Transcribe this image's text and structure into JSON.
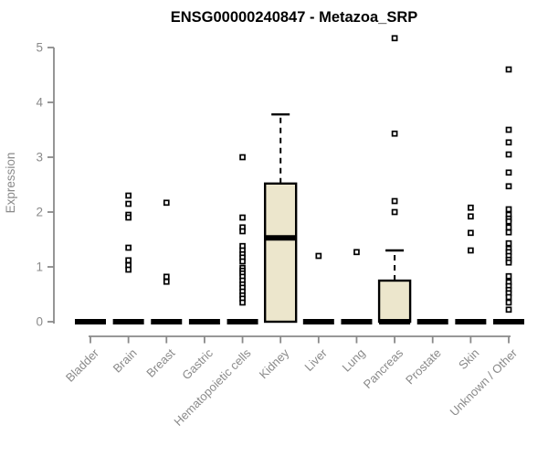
{
  "chart_data": {
    "type": "boxplot",
    "title": "ENSG00000240847 - Metazoa_SRP",
    "ylabel": "Expression",
    "xlabel": "",
    "ylim": [
      0,
      5
    ],
    "yticks": [
      0,
      1,
      2,
      3,
      4,
      5
    ],
    "grid": false,
    "legend": null,
    "categories": [
      "Bladder",
      "Brain",
      "Breast",
      "Gastric",
      "Hematopoietic cells",
      "Kidney",
      "Liver",
      "Lung",
      "Pancreas",
      "Prostate",
      "Skin",
      "Unknown / Other"
    ],
    "series": [
      {
        "label": "Bladder",
        "q1": 0,
        "median": 0,
        "q3": 0,
        "whisker_low": 0,
        "whisker_high": 0,
        "points": []
      },
      {
        "label": "Brain",
        "q1": 0,
        "median": 0,
        "q3": 0,
        "whisker_low": 0,
        "whisker_high": 0,
        "points": [
          2.3,
          2.15,
          1.95,
          1.9,
          1.35,
          1.12,
          1.03,
          0.95
        ]
      },
      {
        "label": "Breast",
        "q1": 0,
        "median": 0,
        "q3": 0,
        "whisker_low": 0,
        "whisker_high": 0,
        "points": [
          2.17,
          0.82,
          0.73
        ]
      },
      {
        "label": "Gastric",
        "q1": 0,
        "median": 0,
        "q3": 0,
        "whisker_low": 0,
        "whisker_high": 0,
        "points": []
      },
      {
        "label": "Hematopoietic cells",
        "q1": 0,
        "median": 0,
        "q3": 0,
        "whisker_low": 0,
        "whisker_high": 0,
        "points": [
          3.0,
          1.9,
          1.72,
          1.65,
          1.38,
          1.3,
          1.23,
          1.17,
          1.1,
          0.98,
          0.93,
          0.88,
          0.82,
          0.75,
          0.68,
          0.62,
          0.55,
          0.48,
          0.42,
          0.35
        ]
      },
      {
        "label": "Kidney",
        "q1": 0,
        "median": 1.53,
        "q3": 2.52,
        "whisker_low": 0,
        "whisker_high": 3.78,
        "points": []
      },
      {
        "label": "Liver",
        "q1": 0,
        "median": 0,
        "q3": 0,
        "whisker_low": 0,
        "whisker_high": 0,
        "points": [
          1.2
        ]
      },
      {
        "label": "Lung",
        "q1": 0,
        "median": 0,
        "q3": 0,
        "whisker_low": 0,
        "whisker_high": 0,
        "points": [
          1.27
        ]
      },
      {
        "label": "Pancreas",
        "q1": 0,
        "median": 0,
        "q3": 0.75,
        "whisker_low": 0,
        "whisker_high": 1.3,
        "points": [
          5.17,
          3.43,
          2.2,
          2.0
        ]
      },
      {
        "label": "Prostate",
        "q1": 0,
        "median": 0,
        "q3": 0,
        "whisker_low": 0,
        "whisker_high": 0,
        "points": []
      },
      {
        "label": "Skin",
        "q1": 0,
        "median": 0,
        "q3": 0,
        "whisker_low": 0,
        "whisker_high": 0,
        "points": [
          2.08,
          1.92,
          1.62,
          1.3
        ]
      },
      {
        "label": "Unknown / Other",
        "q1": 0,
        "median": 0,
        "q3": 0,
        "whisker_low": 0,
        "whisker_high": 0,
        "points": [
          4.6,
          3.5,
          3.27,
          3.05,
          2.72,
          2.47,
          2.05,
          1.95,
          1.88,
          1.83,
          1.72,
          1.63,
          1.43,
          1.33,
          1.27,
          1.2,
          1.13,
          1.08,
          0.83,
          0.72,
          0.65,
          0.58,
          0.52,
          0.45,
          0.35,
          0.22
        ]
      }
    ],
    "colors": {
      "box_fill": "#ece6cc",
      "box_line": "#000000",
      "median_line": "#000000",
      "whisker_line": "#000000",
      "point_stroke": "#000000",
      "point_fill": "#ffffff",
      "axis": "#8a8a8a",
      "tick_label": "#8a8a8a",
      "title": "#000000"
    },
    "point_shape": "open-square",
    "layout_hints": {
      "x_label_rotation_deg": 45,
      "legend_position": "none"
    }
  }
}
